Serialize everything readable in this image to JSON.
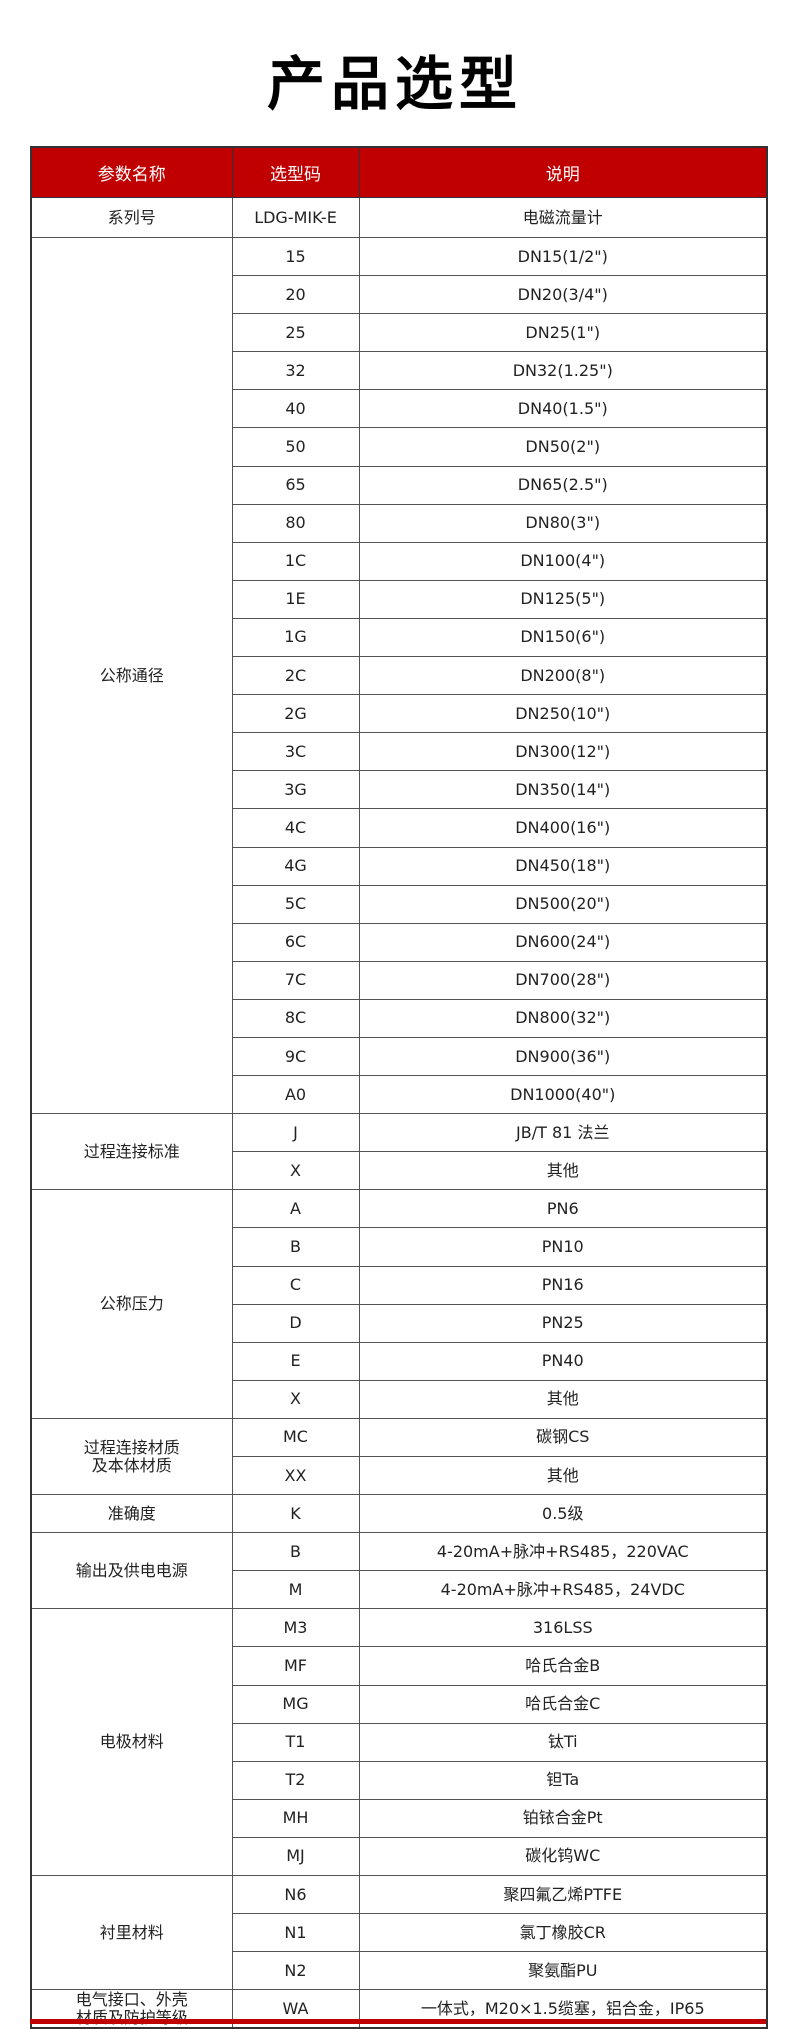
{
  "title": "产品选型",
  "header": {
    "param": "参数名称",
    "code": "选型码",
    "desc": "说明"
  },
  "accent_color": "#c00000",
  "groups": [
    {
      "name": "系列号",
      "rows": [
        [
          "LDG-MIK-E",
          "电磁流量计"
        ]
      ]
    },
    {
      "name": "公称通径",
      "rows": [
        [
          "15",
          "DN15(1/2\")"
        ],
        [
          "20",
          "DN20(3/4\")"
        ],
        [
          "25",
          "DN25(1\")"
        ],
        [
          "32",
          "DN32(1.25\")"
        ],
        [
          "40",
          "DN40(1.5\")"
        ],
        [
          "50",
          "DN50(2\")"
        ],
        [
          "65",
          "DN65(2.5\")"
        ],
        [
          "80",
          "DN80(3\")"
        ],
        [
          "1C",
          "DN100(4\")"
        ],
        [
          "1E",
          "DN125(5\")"
        ],
        [
          "1G",
          "DN150(6\")"
        ],
        [
          "2C",
          "DN200(8\")"
        ],
        [
          "2G",
          "DN250(10\")"
        ],
        [
          "3C",
          "DN300(12\")"
        ],
        [
          "3G",
          "DN350(14\")"
        ],
        [
          "4C",
          "DN400(16\")"
        ],
        [
          "4G",
          "DN450(18\")"
        ],
        [
          "5C",
          "DN500(20\")"
        ],
        [
          "6C",
          "DN600(24\")"
        ],
        [
          "7C",
          "DN700(28\")"
        ],
        [
          "8C",
          "DN800(32\")"
        ],
        [
          "9C",
          "DN900(36\")"
        ],
        [
          "A0",
          "DN1000(40\")"
        ]
      ]
    },
    {
      "name": "过程连接标准",
      "rows": [
        [
          "J",
          "JB/T 81 法兰"
        ],
        [
          "X",
          "其他"
        ]
      ]
    },
    {
      "name": "公称压力",
      "rows": [
        [
          "A",
          "PN6"
        ],
        [
          "B",
          "PN10"
        ],
        [
          "C",
          "PN16"
        ],
        [
          "D",
          "PN25"
        ],
        [
          "E",
          "PN40"
        ],
        [
          "X",
          "其他"
        ]
      ]
    },
    {
      "name": "过程连接材质\n及本体材质",
      "rows": [
        [
          "MC",
          "碳钢CS"
        ],
        [
          "XX",
          "其他"
        ]
      ]
    },
    {
      "name": "准确度",
      "rows": [
        [
          "K",
          "0.5级"
        ]
      ]
    },
    {
      "name": "输出及供电电源",
      "rows": [
        [
          "B",
          "4-20mA+脉冲+RS485，220VAC"
        ],
        [
          "M",
          "4-20mA+脉冲+RS485，24VDC"
        ]
      ]
    },
    {
      "name": "电极材料",
      "rows": [
        [
          "M3",
          "316LSS"
        ],
        [
          "MF",
          "哈氏合金B"
        ],
        [
          "MG",
          "哈氏合金C"
        ],
        [
          "T1",
          "钛Ti"
        ],
        [
          "T2",
          "钽Ta"
        ],
        [
          "MH",
          "铂铱合金Pt"
        ],
        [
          "MJ",
          "碳化钨WC"
        ]
      ]
    },
    {
      "name": "衬里材料",
      "rows": [
        [
          "N6",
          "聚四氟乙烯PTFE"
        ],
        [
          "N1",
          "氯丁橡胶CR"
        ],
        [
          "N2",
          "聚氨酯PU"
        ]
      ]
    },
    {
      "name": "电气接口、外壳\n材质及防护等级",
      "rows": [
        [
          "WA",
          "一体式，M20×1.5缆塞，铝合金，IP65"
        ]
      ]
    }
  ]
}
